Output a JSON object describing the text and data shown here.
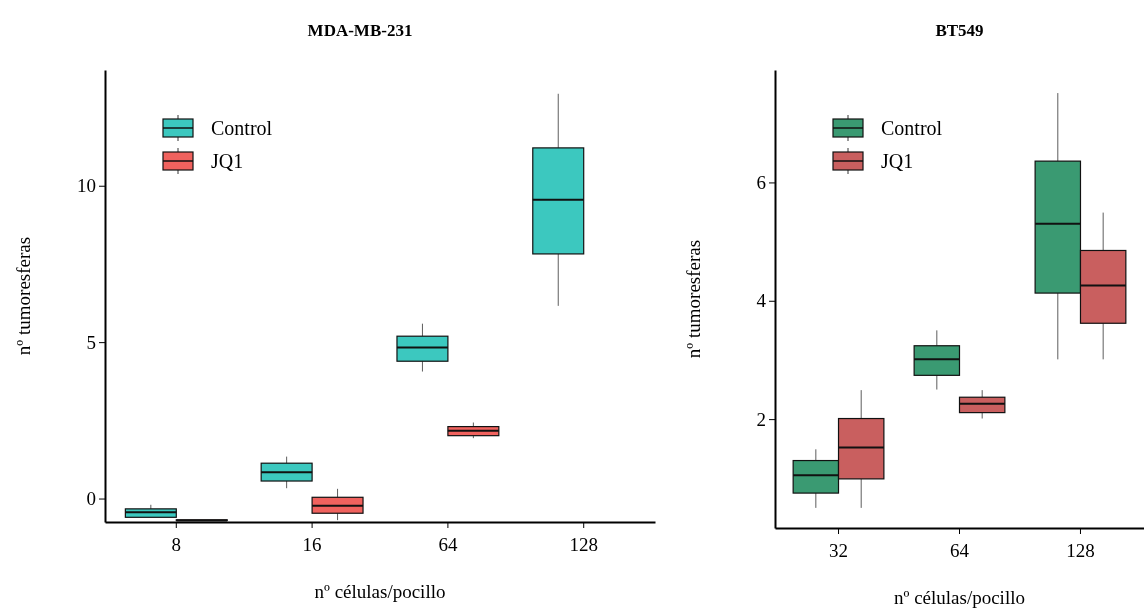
{
  "chart_data": [
    {
      "type": "box",
      "title": "MDA-MB-231",
      "xlabel": "nº células/pocillo",
      "ylabel": "nº tumoresferas",
      "categories": [
        "8",
        "16",
        "64",
        "128"
      ],
      "ylim": [
        -0.75,
        13.7
      ],
      "yticks": [
        0,
        5,
        10
      ],
      "legend": "top left",
      "series": [
        {
          "name": "Control",
          "color": "#3cc8bf",
          "boxes": [
            {
              "low": -0.6,
              "q1": -0.6,
              "median": -0.44,
              "q3": -0.33,
              "high": -0.2
            },
            {
              "low": 0.33,
              "q1": 0.56,
              "median": 0.84,
              "q3": 1.13,
              "high": 1.34
            },
            {
              "low": 4.06,
              "q1": 4.39,
              "median": 4.83,
              "q3": 5.19,
              "high": 5.59
            },
            {
              "low": 6.16,
              "q1": 7.82,
              "median": 9.55,
              "q3": 11.21,
              "high": 12.94
            }
          ]
        },
        {
          "name": "JQ1",
          "color": "#f0625e",
          "boxes": [
            {
              "low": -0.72,
              "q1": -0.7,
              "median": -0.7,
              "q3": -0.68,
              "high": -0.68
            },
            {
              "low": -0.69,
              "q1": -0.47,
              "median": -0.23,
              "q3": 0.04,
              "high": 0.31
            },
            {
              "low": 1.93,
              "q1": 2.01,
              "median": 2.17,
              "q3": 2.3,
              "high": 2.43
            },
            null
          ]
        }
      ]
    },
    {
      "type": "box",
      "title": "BT549",
      "xlabel": "nº células/pocillo",
      "ylabel": "nº tumoresferas",
      "categories": [
        "32",
        "64",
        "128"
      ],
      "ylim": [
        0.16,
        7.9
      ],
      "yticks": [
        2,
        4,
        6
      ],
      "legend": "top left",
      "series": [
        {
          "name": "Control",
          "color": "#3a9a72",
          "boxes": [
            {
              "low": 0.5,
              "q1": 0.75,
              "median": 1.05,
              "q3": 1.3,
              "high": 1.49
            },
            {
              "low": 2.5,
              "q1": 2.74,
              "median": 3.01,
              "q3": 3.24,
              "high": 3.5
            },
            {
              "low": 3.01,
              "q1": 4.13,
              "median": 5.3,
              "q3": 6.36,
              "high": 7.51
            }
          ]
        },
        {
          "name": "JQ1",
          "color": "#c95f5f",
          "boxes": [
            {
              "low": 0.5,
              "q1": 0.99,
              "median": 1.52,
              "q3": 2.01,
              "high": 2.49
            },
            {
              "low": 2.01,
              "q1": 2.11,
              "median": 2.26,
              "q3": 2.37,
              "high": 2.49
            },
            {
              "low": 3.01,
              "q1": 3.62,
              "median": 4.26,
              "q3": 4.85,
              "high": 5.49
            }
          ]
        }
      ]
    }
  ]
}
